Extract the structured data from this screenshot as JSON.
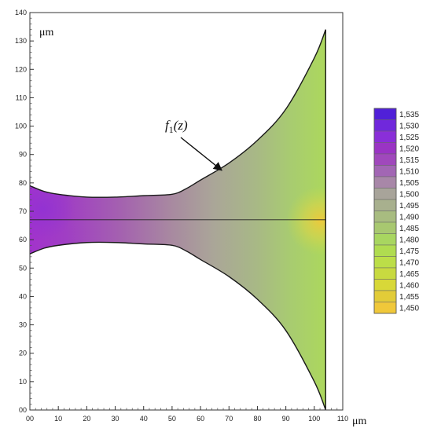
{
  "chart_data": {
    "type": "heatmap",
    "title": "",
    "xlabel": "μm",
    "ylabel": "μm",
    "xlim": [
      0,
      110
    ],
    "ylim": [
      0,
      140
    ],
    "xticks": [
      "00",
      "10",
      "20",
      "30",
      "40",
      "50",
      "60",
      "70",
      "80",
      "90",
      "100",
      "110"
    ],
    "yticks": [
      "00",
      "10",
      "20",
      "30",
      "40",
      "50",
      "60",
      "70",
      "80",
      "90",
      "100",
      "110",
      "120",
      "130",
      "140"
    ],
    "grid": false,
    "legend_placement": "right",
    "axis_line": {
      "y": 67,
      "x_range": [
        0,
        104
      ]
    },
    "annotation": {
      "text": "f1(z)",
      "label_base": "f",
      "label_sub": "1",
      "label_arg": "(z)",
      "arrow_target": [
        68,
        85
      ]
    },
    "colorbar": {
      "values": [
        "1,535",
        "1,530",
        "1,525",
        "1,520",
        "1,515",
        "1,510",
        "1,505",
        "1,500",
        "1,495",
        "1,490",
        "1,485",
        "1,480",
        "1,475",
        "1,470",
        "1,465",
        "1,460",
        "1,455",
        "1,450"
      ],
      "colors": [
        "#5020d8",
        "#7028dc",
        "#8a2fd8",
        "#9a34c4",
        "#a048bc",
        "#a266b4",
        "#a887a8",
        "#a8a49a",
        "#a8b08e",
        "#a8bc80",
        "#a8c870",
        "#a8d660",
        "#b0dc50",
        "#bcde48",
        "#c8da40",
        "#d8d838",
        "#e2cc38",
        "#f0c83a"
      ]
    },
    "series": [
      {
        "name": "upper boundary",
        "x": [
          0,
          5,
          10,
          20,
          30,
          40,
          50,
          55,
          60,
          70,
          80,
          90,
          100,
          104
        ],
        "y": [
          79,
          77,
          76,
          75,
          75,
          75.5,
          76,
          78,
          81,
          87,
          95,
          106,
          124,
          134
        ]
      },
      {
        "name": "lower boundary",
        "x": [
          0,
          5,
          10,
          20,
          30,
          40,
          50,
          55,
          60,
          70,
          80,
          90,
          100,
          104
        ],
        "y": [
          55,
          57,
          58,
          59,
          59,
          58.5,
          58,
          56,
          53,
          47,
          39,
          28,
          10,
          0
        ]
      }
    ]
  }
}
